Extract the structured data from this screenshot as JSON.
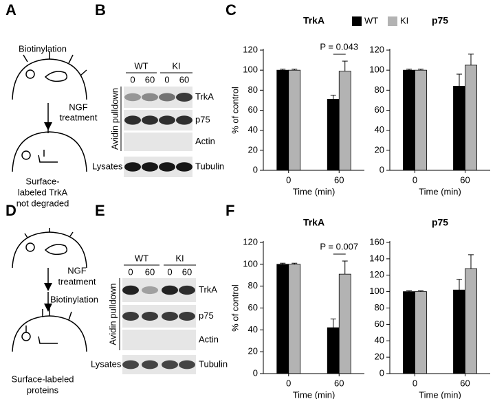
{
  "panel_labels": [
    "A",
    "B",
    "C",
    "D",
    "E",
    "F"
  ],
  "diagram_a": {
    "step1": "Biotinylation",
    "step2": [
      "NGF",
      "treatment"
    ],
    "result": [
      "Surface-",
      "labeled TrkA",
      "not degraded"
    ]
  },
  "diagram_d": {
    "step1": [
      "NGF",
      "treatment"
    ],
    "step2": "Biotinylation",
    "result": [
      "Surface-labeled",
      "proteins"
    ]
  },
  "blot_b": {
    "groups": [
      "WT",
      "KI"
    ],
    "lanes": [
      "0",
      "60",
      "0",
      "60"
    ],
    "bands": [
      "TrkA",
      "p75",
      "Actin",
      "Tubulin"
    ],
    "pulldown_label": "Avidin pulldown",
    "lysate_label": "Lysates"
  },
  "blot_e": {
    "groups": [
      "WT",
      "KI"
    ],
    "lanes": [
      "0",
      "60",
      "0",
      "60"
    ],
    "bands": [
      "TrkA",
      "p75",
      "Actin",
      "Tubulin"
    ],
    "pulldown_label": "Avidin pulldown",
    "lysate_label": "Lysates"
  },
  "chart_data": [
    {
      "type": "bar",
      "title": "TrkA",
      "categories": [
        "0",
        "60"
      ],
      "series": [
        {
          "name": "WT",
          "color": "#000000",
          "values": [
            100,
            71
          ],
          "errors": [
            1,
            4
          ]
        },
        {
          "name": "KI",
          "color": "#b3b3b3",
          "values": [
            100,
            99
          ],
          "errors": [
            1,
            10
          ]
        }
      ],
      "ylim": [
        0,
        120
      ],
      "yticks": [
        0,
        20,
        40,
        60,
        80,
        100,
        120
      ],
      "xlabel": "Time (min)",
      "ylabel": "% of control",
      "annotation": "P = 0.043"
    },
    {
      "type": "bar",
      "title": "p75",
      "categories": [
        "0",
        "60"
      ],
      "series": [
        {
          "color": "#000000",
          "values": [
            100,
            84
          ],
          "errors": [
            1,
            12
          ]
        },
        {
          "color": "#b3b3b3",
          "values": [
            100,
            105
          ],
          "errors": [
            1,
            11
          ]
        }
      ],
      "ylim": [
        0,
        120
      ],
      "yticks": [
        0,
        20,
        40,
        60,
        80,
        100,
        120
      ],
      "xlabel": "Time (min)"
    },
    {
      "type": "bar",
      "title": "TrkA",
      "categories": [
        "0",
        "60"
      ],
      "series": [
        {
          "color": "#000000",
          "values": [
            100,
            42
          ],
          "errors": [
            1,
            8
          ]
        },
        {
          "color": "#b3b3b3",
          "values": [
            100,
            91
          ],
          "errors": [
            1,
            12
          ]
        }
      ],
      "ylim": [
        0,
        120
      ],
      "yticks": [
        0,
        20,
        40,
        60,
        80,
        100,
        120
      ],
      "xlabel": "Time (min)",
      "ylabel": "% of control",
      "annotation": "P = 0.007"
    },
    {
      "type": "bar",
      "title": "p75",
      "categories": [
        "0",
        "60"
      ],
      "series": [
        {
          "color": "#000000",
          "values": [
            100,
            102
          ],
          "errors": [
            1,
            13
          ]
        },
        {
          "color": "#b3b3b3",
          "values": [
            100,
            128
          ],
          "errors": [
            1,
            17
          ]
        }
      ],
      "ylim": [
        0,
        160
      ],
      "yticks": [
        0,
        20,
        40,
        60,
        80,
        100,
        120,
        140,
        160
      ],
      "xlabel": "Time (min)"
    }
  ]
}
